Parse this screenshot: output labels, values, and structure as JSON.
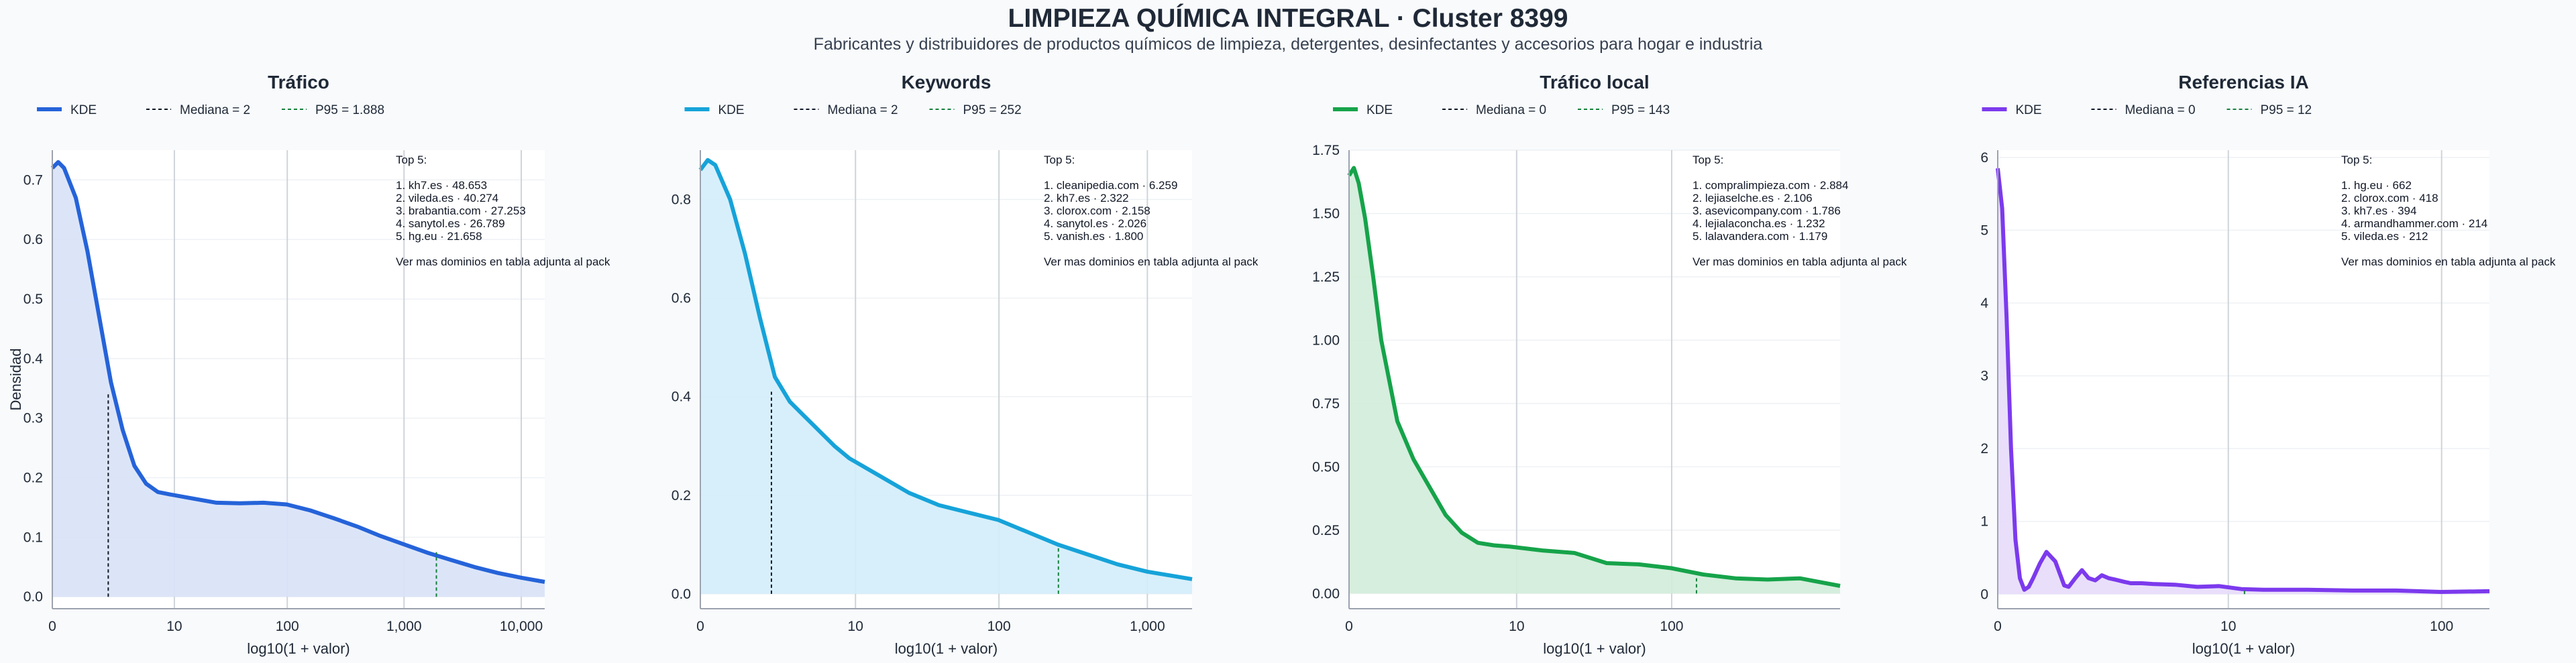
{
  "title": "LIMPIEZA QUÍMICA INTEGRAL · Cluster 8399",
  "subtitle": "Fabricantes y distribuidores de productos químicos de limpieza, detergentes, desinfectantes y accesorios para hogar e industria",
  "colors": {
    "background": "#f8fafc",
    "grid": "#d1d5db",
    "text": "#1f2937"
  },
  "chart_data": [
    {
      "type": "area",
      "title": "Tráfico",
      "xlabel": "log10(1 + valor)",
      "ylabel": "Densidad",
      "color": "#2563d9",
      "fill": "#d8e2f7",
      "legend": [
        "KDE",
        "Mediana = 2",
        "P95 = 1.888"
      ],
      "xlim": [
        0,
        4.2
      ],
      "ylim": [
        -0.02,
        0.75
      ],
      "xticks": [
        {
          "v": 0,
          "label": "0"
        },
        {
          "v": 1.041,
          "label": "10"
        },
        {
          "v": 2.004,
          "label": "100"
        },
        {
          "v": 3.0,
          "label": "1,000"
        },
        {
          "v": 4.0,
          "label": "10,000"
        }
      ],
      "yticks": [
        {
          "v": 0,
          "label": "0.0"
        },
        {
          "v": 0.1,
          "label": "0.1"
        },
        {
          "v": 0.2,
          "label": "0.2"
        },
        {
          "v": 0.3,
          "label": "0.3"
        },
        {
          "v": 0.4,
          "label": "0.4"
        },
        {
          "v": 0.5,
          "label": "0.5"
        },
        {
          "v": 0.6,
          "label": "0.6"
        },
        {
          "v": 0.7,
          "label": "0.7"
        }
      ],
      "x": [
        0,
        0.05,
        0.1,
        0.2,
        0.3,
        0.4,
        0.5,
        0.6,
        0.7,
        0.8,
        0.9,
        1.0,
        1.2,
        1.4,
        1.6,
        1.8,
        2.0,
        2.2,
        2.4,
        2.6,
        2.8,
        3.0,
        3.2,
        3.4,
        3.6,
        3.8,
        4.0,
        4.2
      ],
      "y": [
        0.72,
        0.73,
        0.72,
        0.67,
        0.58,
        0.47,
        0.36,
        0.28,
        0.22,
        0.19,
        0.176,
        0.172,
        0.165,
        0.158,
        0.157,
        0.158,
        0.155,
        0.145,
        0.132,
        0.118,
        0.102,
        0.088,
        0.074,
        0.062,
        0.05,
        0.04,
        0.032,
        0.025
      ],
      "median": {
        "x": 0.477,
        "y": 0.34
      },
      "p95": {
        "x": 3.276,
        "y": 0.075
      },
      "top": [
        "Top 5:",
        "",
        "1. kh7.es · 48.653",
        "2. vileda.es · 40.274",
        "3. brabantia.com · 27.253",
        "4. sanytol.es · 26.789",
        "5. hg.eu · 21.658",
        "",
        "Ver mas dominios en tabla adjunta al pack"
      ]
    },
    {
      "type": "area",
      "title": "Keywords",
      "xlabel": "log10(1 + valor)",
      "ylabel": "",
      "color": "#16a3d9",
      "fill": "#d3edf9",
      "legend": [
        "KDE",
        "Mediana = 2",
        "P95 = 252"
      ],
      "xlim": [
        0,
        3.3
      ],
      "ylim": [
        -0.03,
        0.9
      ],
      "xticks": [
        {
          "v": 0,
          "label": "0"
        },
        {
          "v": 1.041,
          "label": "10"
        },
        {
          "v": 2.004,
          "label": "100"
        },
        {
          "v": 3.0,
          "label": "1,000"
        }
      ],
      "yticks": [
        {
          "v": 0,
          "label": "0.0"
        },
        {
          "v": 0.2,
          "label": "0.2"
        },
        {
          "v": 0.4,
          "label": "0.4"
        },
        {
          "v": 0.6,
          "label": "0.6"
        },
        {
          "v": 0.8,
          "label": "0.8"
        }
      ],
      "x": [
        0,
        0.05,
        0.1,
        0.2,
        0.3,
        0.4,
        0.5,
        0.6,
        0.7,
        0.8,
        0.9,
        1.0,
        1.2,
        1.4,
        1.6,
        1.8,
        2.0,
        2.2,
        2.4,
        2.6,
        2.8,
        3.0,
        3.2,
        3.3
      ],
      "y": [
        0.86,
        0.88,
        0.87,
        0.8,
        0.69,
        0.56,
        0.44,
        0.39,
        0.36,
        0.33,
        0.3,
        0.275,
        0.24,
        0.205,
        0.18,
        0.165,
        0.15,
        0.125,
        0.1,
        0.08,
        0.06,
        0.045,
        0.035,
        0.03
      ],
      "median": {
        "x": 0.477,
        "y": 0.41
      },
      "p95": {
        "x": 2.403,
        "y": 0.095
      },
      "top": [
        "Top 5:",
        "",
        "1. cleanipedia.com · 6.259",
        "2. kh7.es · 2.322",
        "3. clorox.com · 2.158",
        "4. sanytol.es · 2.026",
        "5. vanish.es · 1.800",
        "",
        "Ver mas dominios en tabla adjunta al pack"
      ]
    },
    {
      "type": "area",
      "title": "Tráfico local",
      "xlabel": "log10(1 + valor)",
      "ylabel": "",
      "color": "#16a34a",
      "fill": "#d1ecd9",
      "legend": [
        "KDE",
        "Mediana = 0",
        "P95 = 143"
      ],
      "xlim": [
        0,
        3.05
      ],
      "ylim": [
        -0.06,
        1.75
      ],
      "xticks": [
        {
          "v": 0,
          "label": "0"
        },
        {
          "v": 1.041,
          "label": "10"
        },
        {
          "v": 2.004,
          "label": "100"
        }
      ],
      "yticks": [
        {
          "v": 0,
          "label": "0.00"
        },
        {
          "v": 0.25,
          "label": "0.25"
        },
        {
          "v": 0.5,
          "label": "0.50"
        },
        {
          "v": 0.75,
          "label": "0.75"
        },
        {
          "v": 1.0,
          "label": "1.00"
        },
        {
          "v": 1.25,
          "label": "1.25"
        },
        {
          "v": 1.5,
          "label": "1.50"
        },
        {
          "v": 1.75,
          "label": "1.75"
        }
      ],
      "x": [
        0,
        0.03,
        0.06,
        0.1,
        0.15,
        0.2,
        0.3,
        0.4,
        0.5,
        0.6,
        0.7,
        0.8,
        0.9,
        1.0,
        1.2,
        1.4,
        1.6,
        1.8,
        2.0,
        2.2,
        2.4,
        2.6,
        2.8,
        3.05
      ],
      "y": [
        1.65,
        1.68,
        1.62,
        1.48,
        1.25,
        1.0,
        0.68,
        0.53,
        0.42,
        0.31,
        0.24,
        0.2,
        0.19,
        0.185,
        0.17,
        0.16,
        0.12,
        0.115,
        0.1,
        0.075,
        0.06,
        0.055,
        0.06,
        0.03
      ],
      "median": null,
      "p95": {
        "x": 2.158,
        "y": 0.06
      },
      "top": [
        "Top 5:",
        "",
        "1. compralimpieza.com · 2.884",
        "2. lejiaselche.es · 2.106",
        "3. asevicompany.com · 1.786",
        "4. lejialaconcha.es · 1.232",
        "5. lalavandera.com · 1.179",
        "",
        "Ver mas dominios en tabla adjunta al pack"
      ]
    },
    {
      "type": "area",
      "title": "Referencias IA",
      "xlabel": "log10(1 + valor)",
      "ylabel": "",
      "color": "#7c3aed",
      "fill": "#e7dcfa",
      "legend": [
        "KDE",
        "Mediana = 0",
        "P95 = 12"
      ],
      "xlim": [
        0,
        2.22
      ],
      "ylim": [
        -0.2,
        6.1
      ],
      "xticks": [
        {
          "v": 0,
          "label": "0"
        },
        {
          "v": 1.041,
          "label": "10"
        },
        {
          "v": 2.004,
          "label": "100"
        }
      ],
      "yticks": [
        {
          "v": 0,
          "label": "0"
        },
        {
          "v": 1,
          "label": "1"
        },
        {
          "v": 2,
          "label": "2"
        },
        {
          "v": 3,
          "label": "3"
        },
        {
          "v": 4,
          "label": "4"
        },
        {
          "v": 5,
          "label": "5"
        },
        {
          "v": 6,
          "label": "6"
        }
      ],
      "x": [
        0,
        0.02,
        0.04,
        0.06,
        0.08,
        0.1,
        0.12,
        0.14,
        0.16,
        0.19,
        0.22,
        0.26,
        0.3,
        0.32,
        0.35,
        0.38,
        0.41,
        0.44,
        0.47,
        0.5,
        0.53,
        0.57,
        0.6,
        0.65,
        0.7,
        0.8,
        0.9,
        1.0,
        1.1,
        1.2,
        1.4,
        1.6,
        1.8,
        2.0,
        2.22
      ],
      "y": [
        5.85,
        5.3,
        3.8,
        2.0,
        0.75,
        0.22,
        0.06,
        0.1,
        0.22,
        0.42,
        0.58,
        0.45,
        0.12,
        0.1,
        0.22,
        0.33,
        0.22,
        0.19,
        0.26,
        0.22,
        0.2,
        0.17,
        0.15,
        0.15,
        0.14,
        0.13,
        0.1,
        0.11,
        0.07,
        0.06,
        0.06,
        0.05,
        0.05,
        0.03,
        0.04
      ],
      "median": null,
      "p95": {
        "x": 1.114,
        "y": 0.08
      },
      "top": [
        "Top 5:",
        "",
        "1. hg.eu · 662",
        "2. clorox.com · 418",
        "3. kh7.es · 394",
        "4. armandhammer.com · 214",
        "5. vileda.es · 212",
        "",
        "Ver mas dominios en tabla adjunta al pack"
      ]
    }
  ]
}
